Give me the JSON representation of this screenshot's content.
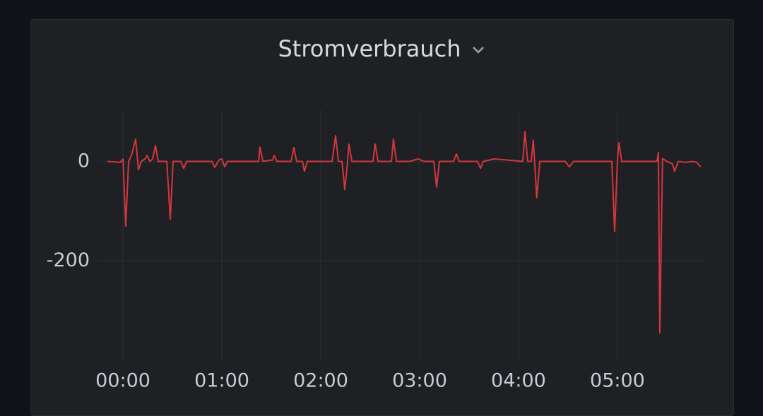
{
  "chart_data": {
    "type": "line",
    "title": "Stromverbrauch",
    "color": "#d2373d",
    "x": [
      -9.4,
      -1.7,
      0,
      1.7,
      3.4,
      5.1,
      7.7,
      9.4,
      11.1,
      13.3,
      14.6,
      16.3,
      18,
      19.7,
      21.4,
      26.6,
      28.7,
      30.4,
      35.1,
      36.9,
      38.6,
      54,
      55.7,
      58.3,
      60,
      61.7,
      63.4,
      82.3,
      83.1,
      84.9,
      90.9,
      91.7,
      93.4,
      102,
      103.7,
      105.4,
      108.9,
      110.1,
      111.9,
      126.9,
      129,
      130.7,
      132.9,
      134.6,
      136.3,
      137.1,
      138.9,
      151.7,
      153,
      154.7,
      162.9,
      164.1,
      165.9,
      174,
      179.1,
      182.6,
      188.6,
      190.3,
      192,
      200.6,
      202.3,
      204,
      215.1,
      216.9,
      218.6,
      225.4,
      242.6,
      243.9,
      245.6,
      247.7,
      249,
      251.1,
      252.9,
      259.7,
      268.3,
      270.9,
      273.4,
      285.4,
      296.6,
      298.3,
      300,
      300.9,
      302.6,
      324,
      324.9,
      325.7,
      327.4,
      330,
      333.4,
      334.7,
      336.9,
      341.1,
      345.4,
      348,
      350.6
    ],
    "values": [
      1,
      -1,
      6,
      -130,
      1,
      13,
      46,
      -16,
      1,
      6,
      13,
      1,
      6,
      33,
      1,
      1,
      -116,
      1,
      1,
      -13,
      1,
      1,
      -11,
      4,
      6,
      -10,
      1,
      1,
      30,
      1,
      4,
      13,
      1,
      1,
      29,
      1,
      1,
      -19,
      1,
      1,
      53,
      1,
      1,
      -56,
      1,
      36,
      1,
      1,
      36,
      1,
      1,
      46,
      1,
      1,
      6,
      1,
      1,
      -51,
      1,
      1,
      16,
      1,
      1,
      -13,
      1,
      6,
      1,
      61,
      1,
      1,
      44,
      -73,
      1,
      1,
      1,
      -10,
      1,
      1,
      1,
      -141,
      1,
      39,
      1,
      1,
      19,
      -346,
      7,
      1,
      -4,
      -19,
      1,
      -1,
      1,
      -1,
      -10
    ],
    "xlim": [
      -14.6,
      351.9
    ],
    "xticks": [
      {
        "value": 0,
        "label": "00:00"
      },
      {
        "value": 60,
        "label": "01:00"
      },
      {
        "value": 120,
        "label": "02:00"
      },
      {
        "value": 180,
        "label": "03:00"
      },
      {
        "value": 240,
        "label": "04:00"
      },
      {
        "value": 300,
        "label": "05:00"
      }
    ],
    "ylim": [
      -401,
      106
    ],
    "yticks": [
      -200,
      0
    ],
    "grid": true
  }
}
